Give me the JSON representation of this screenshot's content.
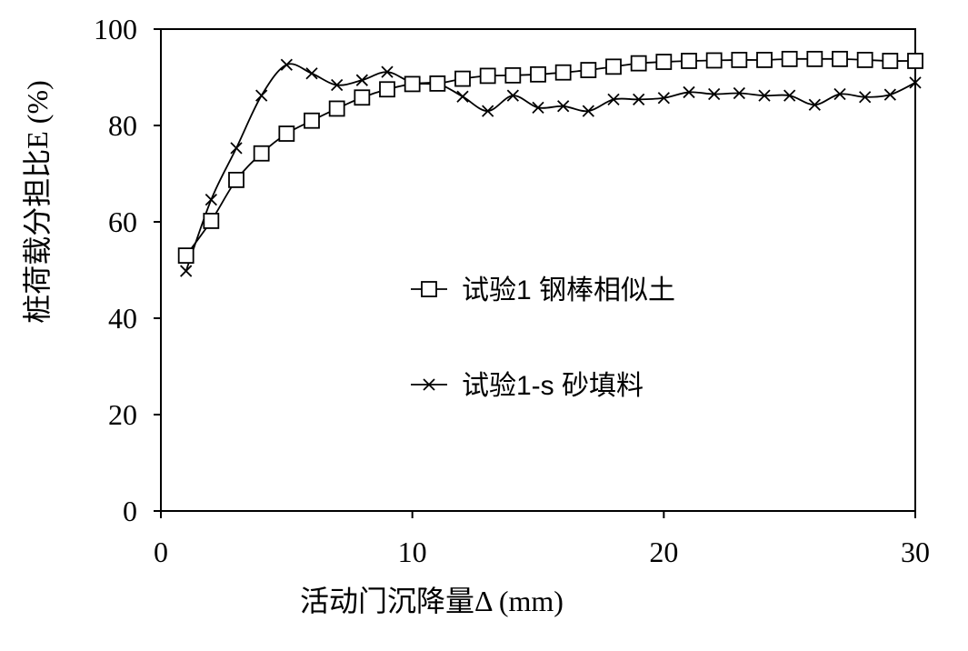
{
  "chart_data": {
    "type": "line",
    "title": "",
    "xlabel": "活动门沉降量Δ (mm)",
    "ylabel": "桩荷载分担比E (%)",
    "xlim": [
      0,
      30
    ],
    "ylim": [
      0,
      100
    ],
    "xticks": [
      0,
      10,
      20,
      30
    ],
    "yticks": [
      0,
      20,
      40,
      60,
      80,
      100
    ],
    "grid": false,
    "legend_position": "center-right",
    "series": [
      {
        "name": "试验1 钢棒相似土",
        "marker": "square-open",
        "color": "#000000",
        "x": [
          1,
          2,
          3,
          4,
          5,
          6,
          7,
          8,
          9,
          10,
          11,
          12,
          13,
          14,
          15,
          16,
          17,
          18,
          19,
          20,
          21,
          22,
          23,
          24,
          25,
          26,
          27,
          28,
          29,
          30
        ],
        "y": [
          53.0,
          60.2,
          68.7,
          74.2,
          78.3,
          81.0,
          83.5,
          85.8,
          87.5,
          88.6,
          88.7,
          89.7,
          90.3,
          90.4,
          90.6,
          91.0,
          91.5,
          92.2,
          92.9,
          93.2,
          93.4,
          93.5,
          93.6,
          93.6,
          93.8,
          93.8,
          93.8,
          93.6,
          93.4,
          93.4
        ]
      },
      {
        "name": "试验1-s 砂填料",
        "marker": "x",
        "color": "#000000",
        "x": [
          1,
          2,
          3,
          4,
          5,
          6,
          7,
          8,
          9,
          10,
          11,
          12,
          13,
          14,
          15,
          16,
          17,
          18,
          19,
          20,
          21,
          22,
          23,
          24,
          25,
          26,
          27,
          28,
          29,
          30
        ],
        "y": [
          49.8,
          64.6,
          75.3,
          86.2,
          92.6,
          90.8,
          88.4,
          89.4,
          91.1,
          88.9,
          88.7,
          86.0,
          83.0,
          86.2,
          83.7,
          84.0,
          83.0,
          85.4,
          85.4,
          85.7,
          86.9,
          86.5,
          86.7,
          86.2,
          86.2,
          84.3,
          86.5,
          85.9,
          86.4,
          88.9
        ]
      }
    ]
  },
  "colors": {
    "axis": "#000000",
    "background": "#ffffff",
    "series": "#000000"
  }
}
